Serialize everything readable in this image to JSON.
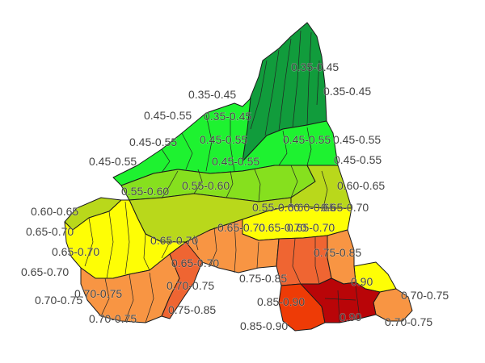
{
  "map": {
    "classes": [
      {
        "range": "0.35-0.45",
        "color": "#119c3c"
      },
      {
        "range": "0.45-0.55",
        "color": "#1ef230"
      },
      {
        "range": "0.55-0.60",
        "color": "#86e01e"
      },
      {
        "range": "0.60-0.65",
        "color": "#b9d81b"
      },
      {
        "range": "0.65-0.70",
        "color": "#fefe05"
      },
      {
        "range": "0.70-0.75",
        "color": "#f89543"
      },
      {
        "range": "0.75-0.85",
        "color": "#ef6532"
      },
      {
        "range": "0.85-0.90",
        "color": "#ee3b06"
      },
      {
        "range": "0.90",
        "color": "#b90508"
      }
    ],
    "boundary_color": "#1a1a1a",
    "labels": [
      "0.35-0.45",
      "0.35-0.45",
      "0.35-0.45",
      "0.45-0.55",
      "0.35-0.45",
      "0.45-0.55",
      "0.45-0.55",
      "0.45-0.55",
      "0.45-0.55",
      "0.45-0.55",
      "0.45-0.55",
      "0.45-0.55",
      "0.55-0.60",
      "0.55-0.60",
      "0.60-0.65",
      "0.60-0.65",
      "0.60-0.65",
      "0.55-0.60",
      "0.65-0.70",
      "0.65-0.70",
      "0.65-0.70",
      "0.65-0.70",
      "0.65-0.70",
      "0.65-0.70",
      "0.65-0.70",
      "0.65-0.70",
      "0.65-0.70",
      "0.75-0.85",
      "0.75-0.85",
      "0.70-0.75",
      "0.70-0.75",
      "0.70-0.75",
      "0.70-0.75",
      "0.75-0.85",
      "0.85-0.90",
      "0.85-0.90",
      "0.90",
      "0.90",
      "0.70-0.75",
      "0.70-0.75"
    ]
  }
}
